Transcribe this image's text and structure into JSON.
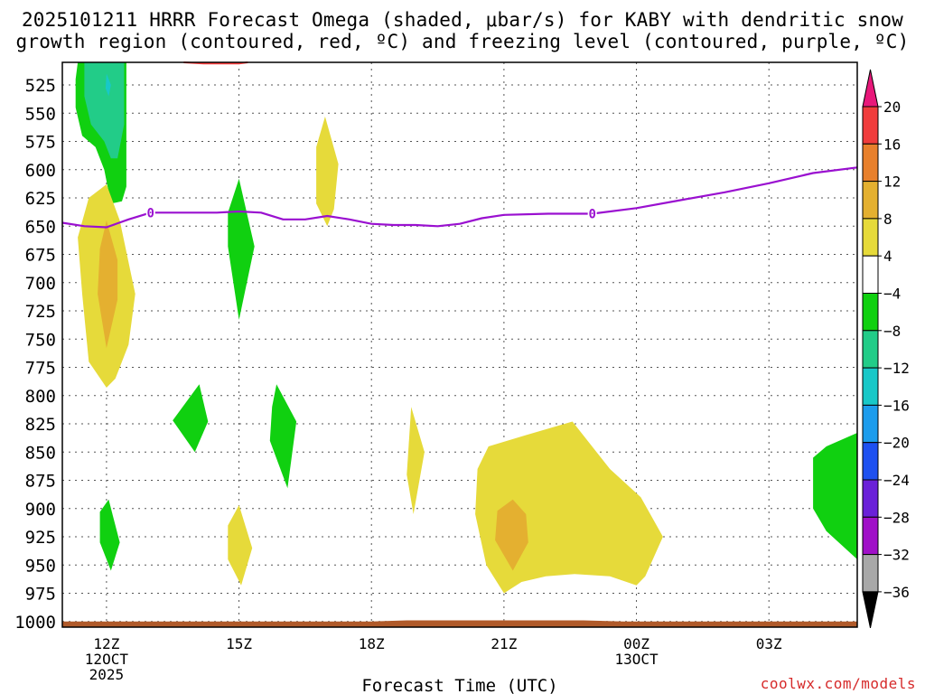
{
  "title": {
    "line1": "2025101211 HRRR Forecast Omega (shaded, μbar/s) for KABY with dendritic snow",
    "line2": "growth region (contoured, red, ºC) and freezing level (contoured, purple, ºC)"
  },
  "credit": "coolwx.com/models",
  "chart_data": {
    "type": "filled-contour",
    "title": "2025101211 HRRR Forecast Omega (shaded, μbar/s) for KABY with dendritic snow growth region (contoured, red, ºC) and freezing level (contoured, purple, ºC)",
    "xlabel": "Forecast Time (UTC)",
    "ylabel": "",
    "x_units": "hours after 2025-10-12 11Z",
    "x_range": [
      0,
      18
    ],
    "y_units": "hPa",
    "y_range": [
      1005,
      505
    ],
    "y_ticks": [
      525,
      550,
      575,
      600,
      625,
      650,
      675,
      700,
      725,
      750,
      775,
      800,
      825,
      850,
      875,
      900,
      925,
      950,
      975,
      1000
    ],
    "x_ticks": [
      {
        "x": 1,
        "lines": [
          "12Z",
          "12OCT",
          "2025"
        ]
      },
      {
        "x": 4,
        "lines": [
          "15Z"
        ]
      },
      {
        "x": 7,
        "lines": [
          "18Z"
        ]
      },
      {
        "x": 10,
        "lines": [
          "21Z"
        ]
      },
      {
        "x": 13,
        "lines": [
          "00Z",
          "13OCT"
        ]
      },
      {
        "x": 16,
        "lines": [
          "03Z"
        ]
      }
    ],
    "colorbar": {
      "levels": [
        20,
        16,
        12,
        8,
        4,
        -4,
        -8,
        -12,
        -16,
        -20,
        -24,
        -28,
        -32,
        -36
      ],
      "bands": [
        {
          "from": 16,
          "to": 20,
          "color": "#f03c3c"
        },
        {
          "from": 12,
          "to": 16,
          "color": "#e8802c"
        },
        {
          "from": 8,
          "to": 12,
          "color": "#e4b030"
        },
        {
          "from": 4,
          "to": 8,
          "color": "#e6da3a"
        },
        {
          "from": -4,
          "to": 4,
          "color": "#ffffff"
        },
        {
          "from": -8,
          "to": -4,
          "color": "#10d010"
        },
        {
          "from": -12,
          "to": -8,
          "color": "#22cc88"
        },
        {
          "from": -16,
          "to": -12,
          "color": "#18c8c8"
        },
        {
          "from": -20,
          "to": -16,
          "color": "#1c9cec"
        },
        {
          "from": -24,
          "to": -20,
          "color": "#1e50f0"
        },
        {
          "from": -28,
          "to": -24,
          "color": "#6a20d8"
        },
        {
          "from": -32,
          "to": -28,
          "color": "#a010c8"
        },
        {
          "from": -36,
          "to": -32,
          "color": "#a8a8a8"
        }
      ],
      "over_color": "#e8187a",
      "under_color": "#000000"
    },
    "omega_regions": [
      {
        "value_range": "-8 to -4",
        "color": "#10d010",
        "points": [
          [
            0.35,
            505
          ],
          [
            1.45,
            505
          ],
          [
            1.45,
            560
          ],
          [
            1.45,
            615
          ],
          [
            1.35,
            628
          ],
          [
            1.1,
            630
          ],
          [
            0.95,
            600
          ],
          [
            0.75,
            580
          ],
          [
            0.45,
            570
          ],
          [
            0.3,
            545
          ],
          [
            0.3,
            520
          ]
        ]
      },
      {
        "value_range": "-12 to -8",
        "color": "#22cc88",
        "points": [
          [
            0.5,
            505
          ],
          [
            1.4,
            505
          ],
          [
            1.4,
            560
          ],
          [
            1.25,
            590
          ],
          [
            1.1,
            590
          ],
          [
            0.95,
            575
          ],
          [
            0.65,
            560
          ],
          [
            0.5,
            535
          ]
        ]
      },
      {
        "value_range": "-16 to -12",
        "color": "#18c8c8",
        "points": [
          [
            1.0,
            515
          ],
          [
            1.1,
            525
          ],
          [
            1.05,
            535
          ],
          [
            0.98,
            528
          ]
        ]
      },
      {
        "value_range": "4 to 8",
        "color": "#e6da3a",
        "points": [
          [
            1.0,
            613
          ],
          [
            1.3,
            645
          ],
          [
            1.65,
            710
          ],
          [
            1.5,
            755
          ],
          [
            1.2,
            785
          ],
          [
            1.0,
            793
          ],
          [
            0.6,
            770
          ],
          [
            0.45,
            710
          ],
          [
            0.35,
            660
          ],
          [
            0.6,
            625
          ]
        ]
      },
      {
        "value_range": "8 to 12",
        "color": "#e4b030",
        "points": [
          [
            1.0,
            645
          ],
          [
            1.25,
            680
          ],
          [
            1.25,
            715
          ],
          [
            1.0,
            758
          ],
          [
            0.8,
            710
          ],
          [
            0.85,
            670
          ]
        ]
      },
      {
        "value_range": "-8 to -4",
        "color": "#10d010",
        "points": [
          [
            4.0,
            608
          ],
          [
            4.35,
            668
          ],
          [
            4.0,
            733
          ],
          [
            3.75,
            668
          ],
          [
            3.75,
            638
          ]
        ]
      },
      {
        "value_range": "4 to 8",
        "color": "#e6da3a",
        "points": [
          [
            5.95,
            553
          ],
          [
            6.25,
            595
          ],
          [
            6.15,
            635
          ],
          [
            6.0,
            650
          ],
          [
            5.75,
            630
          ],
          [
            5.75,
            580
          ]
        ]
      },
      {
        "value_range": "-8 to -4",
        "color": "#10d010",
        "points": [
          [
            3.1,
            790
          ],
          [
            3.3,
            823
          ],
          [
            3.0,
            850
          ],
          [
            2.5,
            822
          ]
        ]
      },
      {
        "value_range": "-8 to -4",
        "color": "#10d010",
        "points": [
          [
            4.85,
            790
          ],
          [
            5.3,
            823
          ],
          [
            5.1,
            882
          ],
          [
            4.7,
            840
          ],
          [
            4.75,
            810
          ]
        ]
      },
      {
        "value_range": "4 to 8",
        "color": "#e6da3a",
        "points": [
          [
            7.9,
            810
          ],
          [
            8.2,
            850
          ],
          [
            7.95,
            905
          ],
          [
            7.8,
            870
          ]
        ]
      },
      {
        "value_range": "-8 to -4",
        "color": "#10d010",
        "points": [
          [
            1.05,
            892
          ],
          [
            1.3,
            930
          ],
          [
            1.1,
            955
          ],
          [
            0.85,
            930
          ],
          [
            0.85,
            903
          ]
        ]
      },
      {
        "value_range": "4 to 8",
        "color": "#e6da3a",
        "points": [
          [
            4.0,
            897
          ],
          [
            4.3,
            935
          ],
          [
            4.05,
            968
          ],
          [
            3.75,
            945
          ],
          [
            3.75,
            915
          ]
        ]
      },
      {
        "value_range": "4 to 8",
        "color": "#e6da3a",
        "points": [
          [
            9.65,
            845
          ],
          [
            10.5,
            835
          ],
          [
            11.55,
            823
          ],
          [
            12.4,
            865
          ],
          [
            13.1,
            890
          ],
          [
            13.6,
            925
          ],
          [
            13.2,
            960
          ],
          [
            13.0,
            968
          ],
          [
            12.4,
            960
          ],
          [
            11.6,
            958
          ],
          [
            10.95,
            960
          ],
          [
            10.4,
            965
          ],
          [
            10.0,
            975
          ],
          [
            9.6,
            950
          ],
          [
            9.35,
            905
          ],
          [
            9.4,
            865
          ]
        ]
      },
      {
        "value_range": "8 to 12",
        "color": "#e4b030",
        "points": [
          [
            10.2,
            892
          ],
          [
            10.5,
            905
          ],
          [
            10.55,
            930
          ],
          [
            10.2,
            955
          ],
          [
            9.8,
            928
          ],
          [
            9.85,
            902
          ]
        ]
      },
      {
        "value_range": "-8 to -4",
        "color": "#10d010",
        "points": [
          [
            18.0,
            833
          ],
          [
            18.0,
            945
          ],
          [
            17.3,
            920
          ],
          [
            17.0,
            900
          ],
          [
            17.0,
            855
          ],
          [
            17.3,
            845
          ]
        ]
      },
      {
        "value_range": "surface",
        "color": "#b05a2a",
        "points": [
          [
            0,
            1000
          ],
          [
            7,
            1000
          ],
          [
            7.8,
            999
          ],
          [
            10,
            999
          ],
          [
            11.8,
            999
          ],
          [
            12.7,
            1000
          ],
          [
            18,
            1000
          ],
          [
            18,
            1005
          ],
          [
            0,
            1005
          ]
        ]
      }
    ],
    "dgz_contour": {
      "color": "#ff4040",
      "points": [
        [
          2.75,
          505
        ],
        [
          3.2,
          506
        ],
        [
          4.0,
          506
        ],
        [
          4.2,
          505
        ]
      ]
    },
    "freezing_level": {
      "color": "#9a10d0",
      "label": "0",
      "label_x": [
        2.0,
        12.0
      ],
      "points": [
        [
          0,
          647
        ],
        [
          0.5,
          650
        ],
        [
          1.0,
          651
        ],
        [
          1.5,
          644
        ],
        [
          2.0,
          638
        ],
        [
          2.5,
          638
        ],
        [
          3.0,
          638
        ],
        [
          3.5,
          638
        ],
        [
          4.0,
          637
        ],
        [
          4.5,
          638
        ],
        [
          5.0,
          644
        ],
        [
          5.5,
          644
        ],
        [
          6.0,
          641
        ],
        [
          6.5,
          644
        ],
        [
          7.0,
          648
        ],
        [
          7.5,
          649
        ],
        [
          8.0,
          649
        ],
        [
          8.5,
          650
        ],
        [
          9.0,
          648
        ],
        [
          9.5,
          643
        ],
        [
          10.0,
          640
        ],
        [
          11.0,
          639
        ],
        [
          12.0,
          639
        ],
        [
          13.0,
          634
        ],
        [
          14.0,
          627
        ],
        [
          15.0,
          620
        ],
        [
          16.0,
          612
        ],
        [
          17.0,
          603
        ],
        [
          18.0,
          598
        ]
      ]
    }
  }
}
